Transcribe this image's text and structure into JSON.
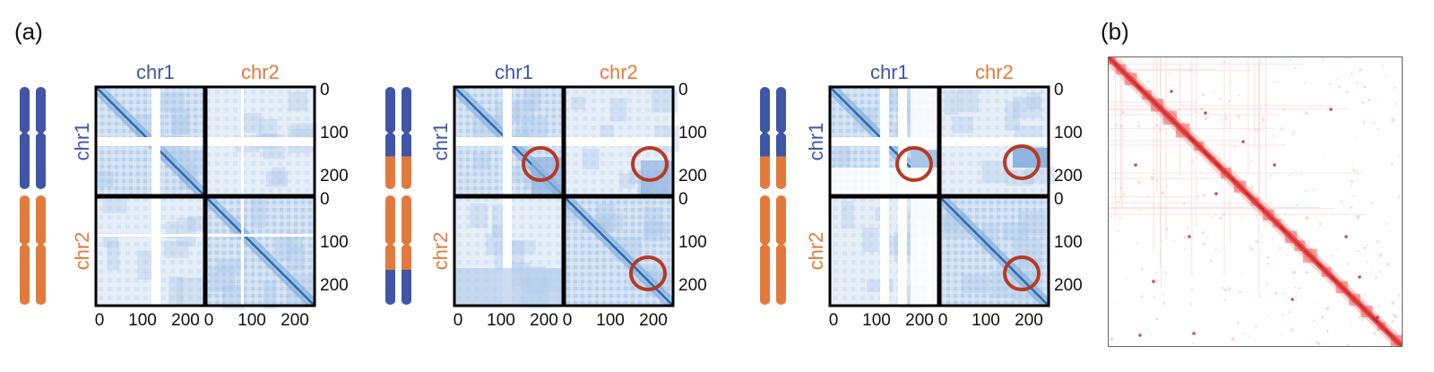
{
  "panel_a_label": "(a)",
  "panel_b_label": "(b)",
  "chromosome_labels": {
    "chr1": "chr1",
    "chr2": "chr2"
  },
  "colors": {
    "chr1": "#3f56a8",
    "chr2": "#e37a3c",
    "heatmap_a": "#2f6fb6",
    "heatmap_b": "#d62020",
    "circle": "#b63a24"
  },
  "heatmaps": [
    {
      "chr1_axis_ticks": [
        "0",
        "100",
        "200"
      ],
      "chr2_axis_ticks": [
        "0",
        "100",
        "200"
      ],
      "bottom_ticks_chr1": [
        "0",
        "100",
        "200"
      ],
      "bottom_ticks_chr2": [
        "0",
        "100",
        "200"
      ],
      "circled_regions": 0
    },
    {
      "chr1_axis_ticks": [
        "0",
        "100",
        "200"
      ],
      "chr2_axis_ticks": [
        "0",
        "100",
        "200"
      ],
      "bottom_ticks_chr1": [
        "0",
        "100",
        "200"
      ],
      "bottom_ticks_chr2": [
        "0",
        "100",
        "200"
      ],
      "circled_regions": 3
    },
    {
      "chr1_axis_ticks": [
        "0",
        "100",
        "200"
      ],
      "chr2_axis_ticks": [
        "0",
        "100",
        "200"
      ],
      "bottom_ticks_chr1": [
        "0",
        "100",
        "200"
      ],
      "bottom_ticks_chr2": [
        "0",
        "100",
        "200"
      ],
      "circled_regions": 3
    }
  ]
}
